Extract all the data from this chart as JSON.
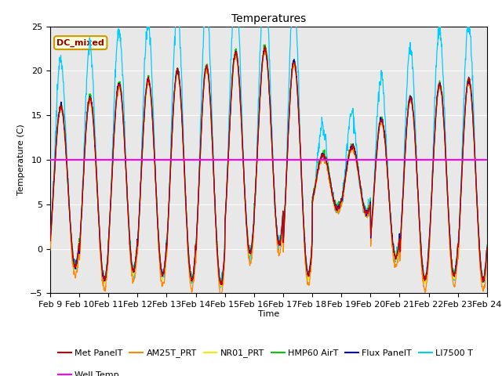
{
  "title": "Temperatures",
  "xlabel": "Time",
  "ylabel": "Temperature (C)",
  "ylim": [
    -5,
    25
  ],
  "background_color": "#e8e8e8",
  "annotation_text": "DC_mixed",
  "annotation_color": "#8B0000",
  "annotation_bg": "#ffffdd",
  "annotation_border": "#cc9900",
  "well_temp_value": 10.0,
  "x_tick_labels": [
    "Feb 9",
    "Feb 10",
    "Feb 11",
    "Feb 12",
    "Feb 13",
    "Feb 14",
    "Feb 15",
    "Feb 16",
    "Feb 17",
    "Feb 18",
    "Feb 19",
    "Feb 20",
    "Feb 21",
    "Feb 22",
    "Feb 23",
    "Feb 24"
  ],
  "series_colors": {
    "Met PanelT": "#cc0000",
    "AM25T_PRT": "#ff8800",
    "NR01_PRT": "#eeee00",
    "HMP60 AirT": "#00cc00",
    "Flux PanelT": "#0000cc",
    "LI7500 T": "#00ccff",
    "Well Temp": "#ff00ff"
  },
  "n_days": 15,
  "n_points_per_day": 96,
  "seed": 42,
  "day_max": [
    16,
    17,
    18.5,
    19,
    20,
    20.5,
    22,
    22.5,
    21,
    10.5,
    11.5,
    14.5,
    17,
    18.5,
    19
  ],
  "day_min": [
    -2,
    -3.5,
    -2.5,
    -3,
    -3.5,
    -4,
    -0.5,
    0.5,
    -3,
    4.5,
    4,
    -1,
    -3.5,
    -3,
    -3.5
  ],
  "li7500_extra_spike": 2.5,
  "phase_shift": 0.1
}
